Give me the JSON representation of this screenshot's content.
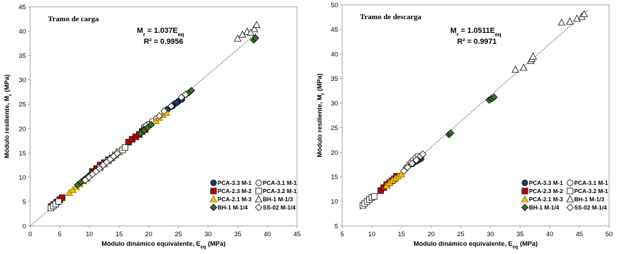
{
  "chart_data": [
    {
      "type": "scatter",
      "title": "Tramo de carga",
      "equation": "M_r = 1.037E_eq",
      "equation_main": "M",
      "equation_sub1": "r",
      "equation_mid": " = 1.037E",
      "equation_sub2": "eq",
      "r2": "R² = 0.9956",
      "xlabel_main": "Módulo dinámico equivalente, E",
      "xlabel_sub": "eq",
      "xlabel_unit": " (MPa)",
      "ylabel_main": "Módulo resiliente, M",
      "ylabel_sub": "r",
      "ylabel_unit": " (MPa)",
      "xlim": [
        0,
        45
      ],
      "ylim": [
        0,
        45
      ],
      "xticks": [
        0,
        5,
        10,
        15,
        20,
        25,
        30,
        35,
        40,
        45
      ],
      "yticks": [
        0,
        5,
        10,
        15,
        20,
        25,
        30,
        35,
        40,
        45
      ],
      "trendline": {
        "slope": 1.037,
        "x": [
          0,
          38.5
        ],
        "style": "dotted"
      },
      "grid": false,
      "legend_position": "bottom-right",
      "series": [
        {
          "name": "PCA-3.3 M-1",
          "marker": "circle",
          "color": "#1f3b73",
          "points": [
            [
              23.2,
              24.0
            ],
            [
              23.8,
              24.5
            ],
            [
              24.4,
              25.1
            ],
            [
              25.0,
              25.6
            ],
            [
              25.6,
              26.0
            ],
            [
              24.0,
              24.6
            ],
            [
              24.7,
              25.3
            ]
          ]
        },
        {
          "name": "PCA-3.1 M-1",
          "marker": "circle-open",
          "color": "#000000",
          "points": [
            [
              19.2,
              20.3
            ],
            [
              19.9,
              20.9
            ],
            [
              20.6,
              21.5
            ],
            [
              21.3,
              22.0
            ],
            [
              19.6,
              20.6
            ]
          ]
        },
        {
          "name": "PCA-2.3 M-2",
          "marker": "square",
          "color": "#c00000",
          "points": [
            [
              3.6,
              4.0
            ],
            [
              4.0,
              4.4
            ],
            [
              4.5,
              4.9
            ],
            [
              5.0,
              5.4
            ],
            [
              5.4,
              5.8
            ],
            [
              10.5,
              11.2
            ],
            [
              11.2,
              11.8
            ],
            [
              11.8,
              12.5
            ],
            [
              12.5,
              13.0
            ],
            [
              13.2,
              13.6
            ],
            [
              16.6,
              17.2
            ],
            [
              17.2,
              17.8
            ],
            [
              17.8,
              18.3
            ],
            [
              18.4,
              18.8
            ],
            [
              18.9,
              19.4
            ],
            [
              19.4,
              19.8
            ]
          ]
        },
        {
          "name": "PCA-3.2 M-1",
          "marker": "square-open",
          "color": "#000000",
          "points": [
            [
              3.5,
              3.7
            ],
            [
              3.9,
              4.1
            ],
            [
              4.3,
              4.5
            ],
            [
              4.8,
              5.0
            ],
            [
              11.8,
              12.0
            ],
            [
              12.5,
              12.7
            ],
            [
              13.2,
              13.4
            ],
            [
              13.8,
              14.0
            ],
            [
              14.4,
              14.6
            ],
            [
              15.0,
              15.2
            ],
            [
              15.6,
              15.6
            ],
            [
              16.0,
              16.1
            ]
          ]
        },
        {
          "name": "PCA-2.1 M-3",
          "marker": "triangle",
          "color": "#f2c200",
          "points": [
            [
              6.6,
              6.8
            ],
            [
              7.2,
              7.4
            ],
            [
              7.8,
              8.0
            ],
            [
              8.4,
              8.6
            ],
            [
              9.0,
              9.2
            ],
            [
              9.6,
              9.7
            ],
            [
              13.5,
              13.8
            ],
            [
              14.0,
              14.4
            ],
            [
              14.6,
              15.0
            ],
            [
              21.2,
              21.6
            ],
            [
              21.8,
              22.2
            ],
            [
              22.4,
              22.8
            ],
            [
              23.0,
              23.3
            ]
          ]
        },
        {
          "name": "BH-1 M-1/3",
          "marker": "triangle-open",
          "color": "#000000",
          "points": [
            [
              35.0,
              38.5
            ],
            [
              35.8,
              39.3
            ],
            [
              36.6,
              39.9
            ],
            [
              37.8,
              40.5
            ],
            [
              38.2,
              41.3
            ],
            [
              37.2,
              39.7
            ]
          ]
        },
        {
          "name": "BH-1 M-1/4",
          "marker": "diamond",
          "color": "#3a6e28",
          "points": [
            [
              8.0,
              8.4
            ],
            [
              8.6,
              9.0
            ],
            [
              9.2,
              9.6
            ],
            [
              9.8,
              10.2
            ],
            [
              10.3,
              10.8
            ],
            [
              18.6,
              19.0
            ],
            [
              19.2,
              19.6
            ],
            [
              19.8,
              20.2
            ],
            [
              20.4,
              20.8
            ],
            [
              26.3,
              27.0
            ],
            [
              26.8,
              27.4
            ],
            [
              27.2,
              27.8
            ],
            [
              37.7,
              38.2
            ],
            [
              38.0,
              38.6
            ]
          ]
        },
        {
          "name": "SS-02 M-1/4",
          "marker": "diamond-open",
          "color": "#000000",
          "points": [
            [
              9.3,
              9.4
            ],
            [
              9.9,
              10.0
            ],
            [
              10.5,
              10.6
            ],
            [
              11.1,
              11.2
            ],
            [
              11.7,
              11.8
            ],
            [
              12.3,
              12.5
            ],
            [
              12.9,
              13.1
            ],
            [
              13.5,
              13.7
            ],
            [
              14.1,
              14.3
            ],
            [
              14.7,
              14.9
            ],
            [
              21.8,
              22.6
            ],
            [
              22.6,
              23.6
            ],
            [
              23.8,
              24.6
            ],
            [
              25.5,
              26.4
            ],
            [
              26.2,
              27.0
            ]
          ]
        }
      ]
    },
    {
      "type": "scatter",
      "title": "Tramo de descarga",
      "equation": "M_r = 1.0511E_eq",
      "equation_main": "M",
      "equation_sub1": "r",
      "equation_mid": " = 1.0511E",
      "equation_sub2": "eq",
      "r2": "R² = 0.9971",
      "xlabel_main": "Módulo dinámico equivalente, E",
      "xlabel_sub": "eq",
      "xlabel_unit": " (MPa)",
      "ylabel_main": "Módulo resiliente, M",
      "ylabel_sub": "r",
      "ylabel_unit": " (MPa)",
      "xlim": [
        5,
        50
      ],
      "ylim": [
        5,
        50
      ],
      "xticks": [
        5,
        10,
        15,
        20,
        25,
        30,
        35,
        40,
        45,
        50
      ],
      "yticks": [
        5,
        10,
        15,
        20,
        25,
        30,
        35,
        40,
        45,
        50
      ],
      "trendline": {
        "slope": 1.0511,
        "x": [
          8,
          46.5
        ],
        "style": "dotted"
      },
      "grid": false,
      "legend_position": "bottom-right",
      "series": [
        {
          "name": "PCA-3.3 M-1",
          "marker": "circle",
          "color": "#1f3b73",
          "points": [
            [
              16.8,
              17.6
            ],
            [
              17.2,
              18.0
            ],
            [
              17.6,
              18.2
            ],
            [
              18.0,
              18.5
            ],
            [
              18.3,
              18.7
            ]
          ]
        },
        {
          "name": "PCA-3.1 M-1",
          "marker": "circle-open",
          "color": "#000000",
          "points": [
            [
              15.8,
              16.8
            ],
            [
              16.2,
              17.4
            ],
            [
              16.6,
              17.9
            ],
            [
              17.0,
              18.4
            ],
            [
              17.4,
              18.9
            ],
            [
              17.8,
              19.2
            ]
          ]
        },
        {
          "name": "PCA-2.3 M-2",
          "marker": "square",
          "color": "#c00000",
          "points": [
            [
              11.5,
              12.2
            ],
            [
              12.0,
              12.8
            ],
            [
              12.5,
              13.4
            ],
            [
              13.0,
              13.8
            ],
            [
              13.4,
              14.2
            ],
            [
              13.8,
              14.6
            ],
            [
              14.2,
              15.1
            ]
          ]
        },
        {
          "name": "PCA-3.2 M-1",
          "marker": "square-open",
          "color": "#000000",
          "points": [
            [
              8.5,
              9.2
            ],
            [
              8.8,
              9.6
            ],
            [
              9.2,
              10.0
            ],
            [
              9.6,
              10.4
            ],
            [
              10.0,
              10.8
            ],
            [
              10.4,
              11.0
            ]
          ]
        },
        {
          "name": "PCA-2.1 M-3",
          "marker": "triangle",
          "color": "#f2c200",
          "points": [
            [
              12.5,
              13.2
            ],
            [
              13.0,
              13.8
            ],
            [
              13.5,
              14.3
            ],
            [
              14.0,
              14.7
            ],
            [
              14.5,
              15.1
            ],
            [
              15.0,
              15.5
            ]
          ]
        },
        {
          "name": "BH-1 M-1/3",
          "marker": "triangle-open",
          "color": "#000000",
          "points": [
            [
              34.2,
              36.8
            ],
            [
              35.6,
              37.2
            ],
            [
              36.8,
              38.6
            ],
            [
              37.0,
              39.0
            ],
            [
              37.2,
              39.5
            ],
            [
              42.0,
              46.4
            ],
            [
              43.4,
              46.6
            ],
            [
              44.6,
              47.2
            ],
            [
              45.4,
              47.6
            ],
            [
              45.8,
              48.1
            ]
          ]
        },
        {
          "name": "BH-1 M-1/4",
          "marker": "diamond",
          "color": "#3a6e28",
          "points": [
            [
              23.0,
              23.6
            ],
            [
              23.3,
              23.9
            ],
            [
              29.8,
              30.6
            ],
            [
              30.2,
              30.9
            ],
            [
              30.6,
              31.2
            ]
          ]
        },
        {
          "name": "SS-02 M-1/4",
          "marker": "diamond-open",
          "color": "#000000",
          "points": [
            [
              15.4,
              16.2
            ],
            [
              16.0,
              16.9
            ],
            [
              16.8,
              17.7
            ],
            [
              17.5,
              18.4
            ],
            [
              18.2,
              19.2
            ],
            [
              18.6,
              19.6
            ]
          ]
        }
      ]
    }
  ]
}
